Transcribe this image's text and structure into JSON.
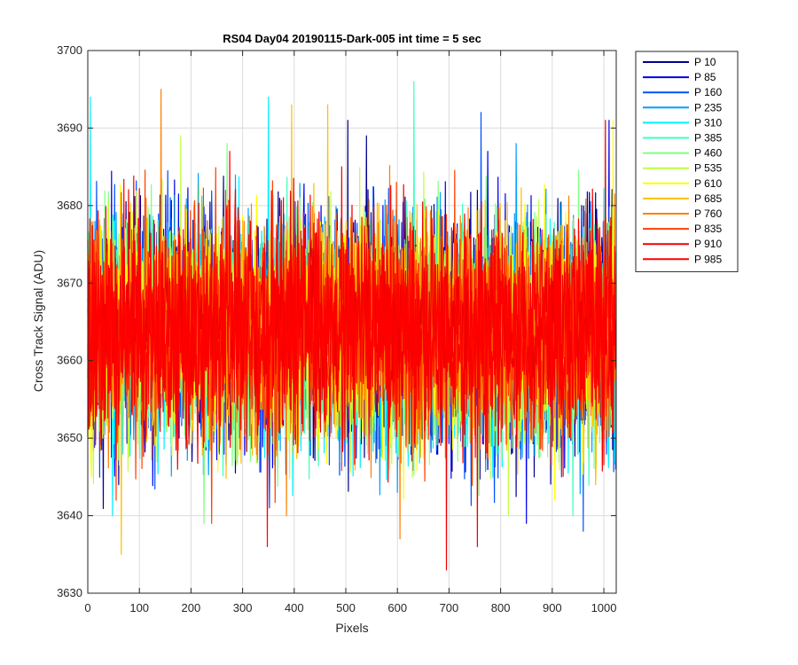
{
  "chart_data": {
    "type": "line",
    "title": "RS04 Day04 20190115-Dark-005 int time = 5 sec",
    "xlabel": "Pixels",
    "ylabel": "Cross Track Signal (ADU)",
    "xlim": [
      0,
      1024
    ],
    "ylim": [
      3630,
      3700
    ],
    "xticks": [
      0,
      100,
      200,
      300,
      400,
      500,
      600,
      700,
      800,
      900,
      1000
    ],
    "yticks": [
      3630,
      3640,
      3650,
      3660,
      3670,
      3680,
      3690,
      3700
    ],
    "xtick_labels": [
      "0",
      "100",
      "200",
      "300",
      "400",
      "500",
      "600",
      "700",
      "800",
      "900",
      "1000"
    ],
    "ytick_labels": [
      "3630",
      "3640",
      "3650",
      "3660",
      "3670",
      "3680",
      "3690",
      "3700"
    ],
    "grid": true,
    "legend_position": "outside-top-right",
    "x_count": 1024,
    "series": [
      {
        "name": "P 10",
        "color": "#00008f",
        "mean": 3664,
        "sd": 7.5,
        "seed": 11,
        "peaks": [
          [
            504,
            3691
          ],
          [
            540,
            3689
          ],
          [
            60,
            3644
          ]
        ]
      },
      {
        "name": "P 85",
        "color": "#0000ef",
        "mean": 3664,
        "sd": 7.5,
        "seed": 23,
        "peaks": [
          [
            1010,
            3691
          ],
          [
            775,
            3687
          ],
          [
            850,
            3639
          ]
        ]
      },
      {
        "name": "P 160",
        "color": "#0050ff",
        "mean": 3664,
        "sd": 7.5,
        "seed": 37,
        "peaks": [
          [
            762,
            3692
          ],
          [
            960,
            3638
          ],
          [
            352,
            3641
          ]
        ]
      },
      {
        "name": "P 235",
        "color": "#00a0ff",
        "mean": 3664,
        "sd": 7.2,
        "seed": 41,
        "peaks": [
          [
            830,
            3688
          ],
          [
            600,
            3643
          ]
        ]
      },
      {
        "name": "P 310",
        "color": "#00efff",
        "mean": 3664,
        "sd": 7.2,
        "seed": 53,
        "peaks": [
          [
            350,
            3694
          ],
          [
            5,
            3694
          ],
          [
            48,
            3640
          ]
        ]
      },
      {
        "name": "P 385",
        "color": "#40ffbf",
        "mean": 3664,
        "sd": 7.0,
        "seed": 61,
        "peaks": [
          [
            632,
            3696
          ],
          [
            940,
            3640
          ]
        ]
      },
      {
        "name": "P 460",
        "color": "#80ff80",
        "mean": 3664,
        "sd": 7.0,
        "seed": 71,
        "peaks": [
          [
            225,
            3639
          ],
          [
            270,
            3688
          ]
        ]
      },
      {
        "name": "P 535",
        "color": "#bfff40",
        "mean": 3664,
        "sd": 7.0,
        "seed": 83,
        "peaks": [
          [
            180,
            3689
          ],
          [
            815,
            3640
          ]
        ]
      },
      {
        "name": "P 610",
        "color": "#ffff00",
        "mean": 3664,
        "sd": 7.0,
        "seed": 97,
        "peaks": [
          [
            1018,
            3691
          ],
          [
            905,
            3642
          ]
        ]
      },
      {
        "name": "P 685",
        "color": "#ffbf00",
        "mean": 3664,
        "sd": 7.0,
        "seed": 101,
        "peaks": [
          [
            65,
            3635
          ],
          [
            395,
            3693
          ],
          [
            465,
            3693
          ]
        ]
      },
      {
        "name": "P 760",
        "color": "#ff8000",
        "mean": 3664,
        "sd": 7.0,
        "seed": 113,
        "peaks": [
          [
            142,
            3695
          ],
          [
            605,
            3637
          ],
          [
            385,
            3640
          ]
        ]
      },
      {
        "name": "P 835",
        "color": "#ff4000",
        "mean": 3664,
        "sd": 7.0,
        "seed": 127,
        "peaks": [
          [
            240,
            3639
          ],
          [
            55,
            3642
          ],
          [
            598,
            3683
          ]
        ]
      },
      {
        "name": "P 910",
        "color": "#ef0000",
        "mean": 3664,
        "sd": 7.0,
        "seed": 131,
        "peaks": [
          [
            695,
            3633
          ],
          [
            755,
            3636
          ],
          [
            1003,
            3691
          ]
        ]
      },
      {
        "name": "P 985",
        "color": "#ff0000",
        "mean": 3664,
        "sd": 6.8,
        "seed": 139,
        "peaks": [
          [
            348,
            3636
          ],
          [
            275,
            3687
          ],
          [
            492,
            3685
          ]
        ]
      }
    ]
  }
}
